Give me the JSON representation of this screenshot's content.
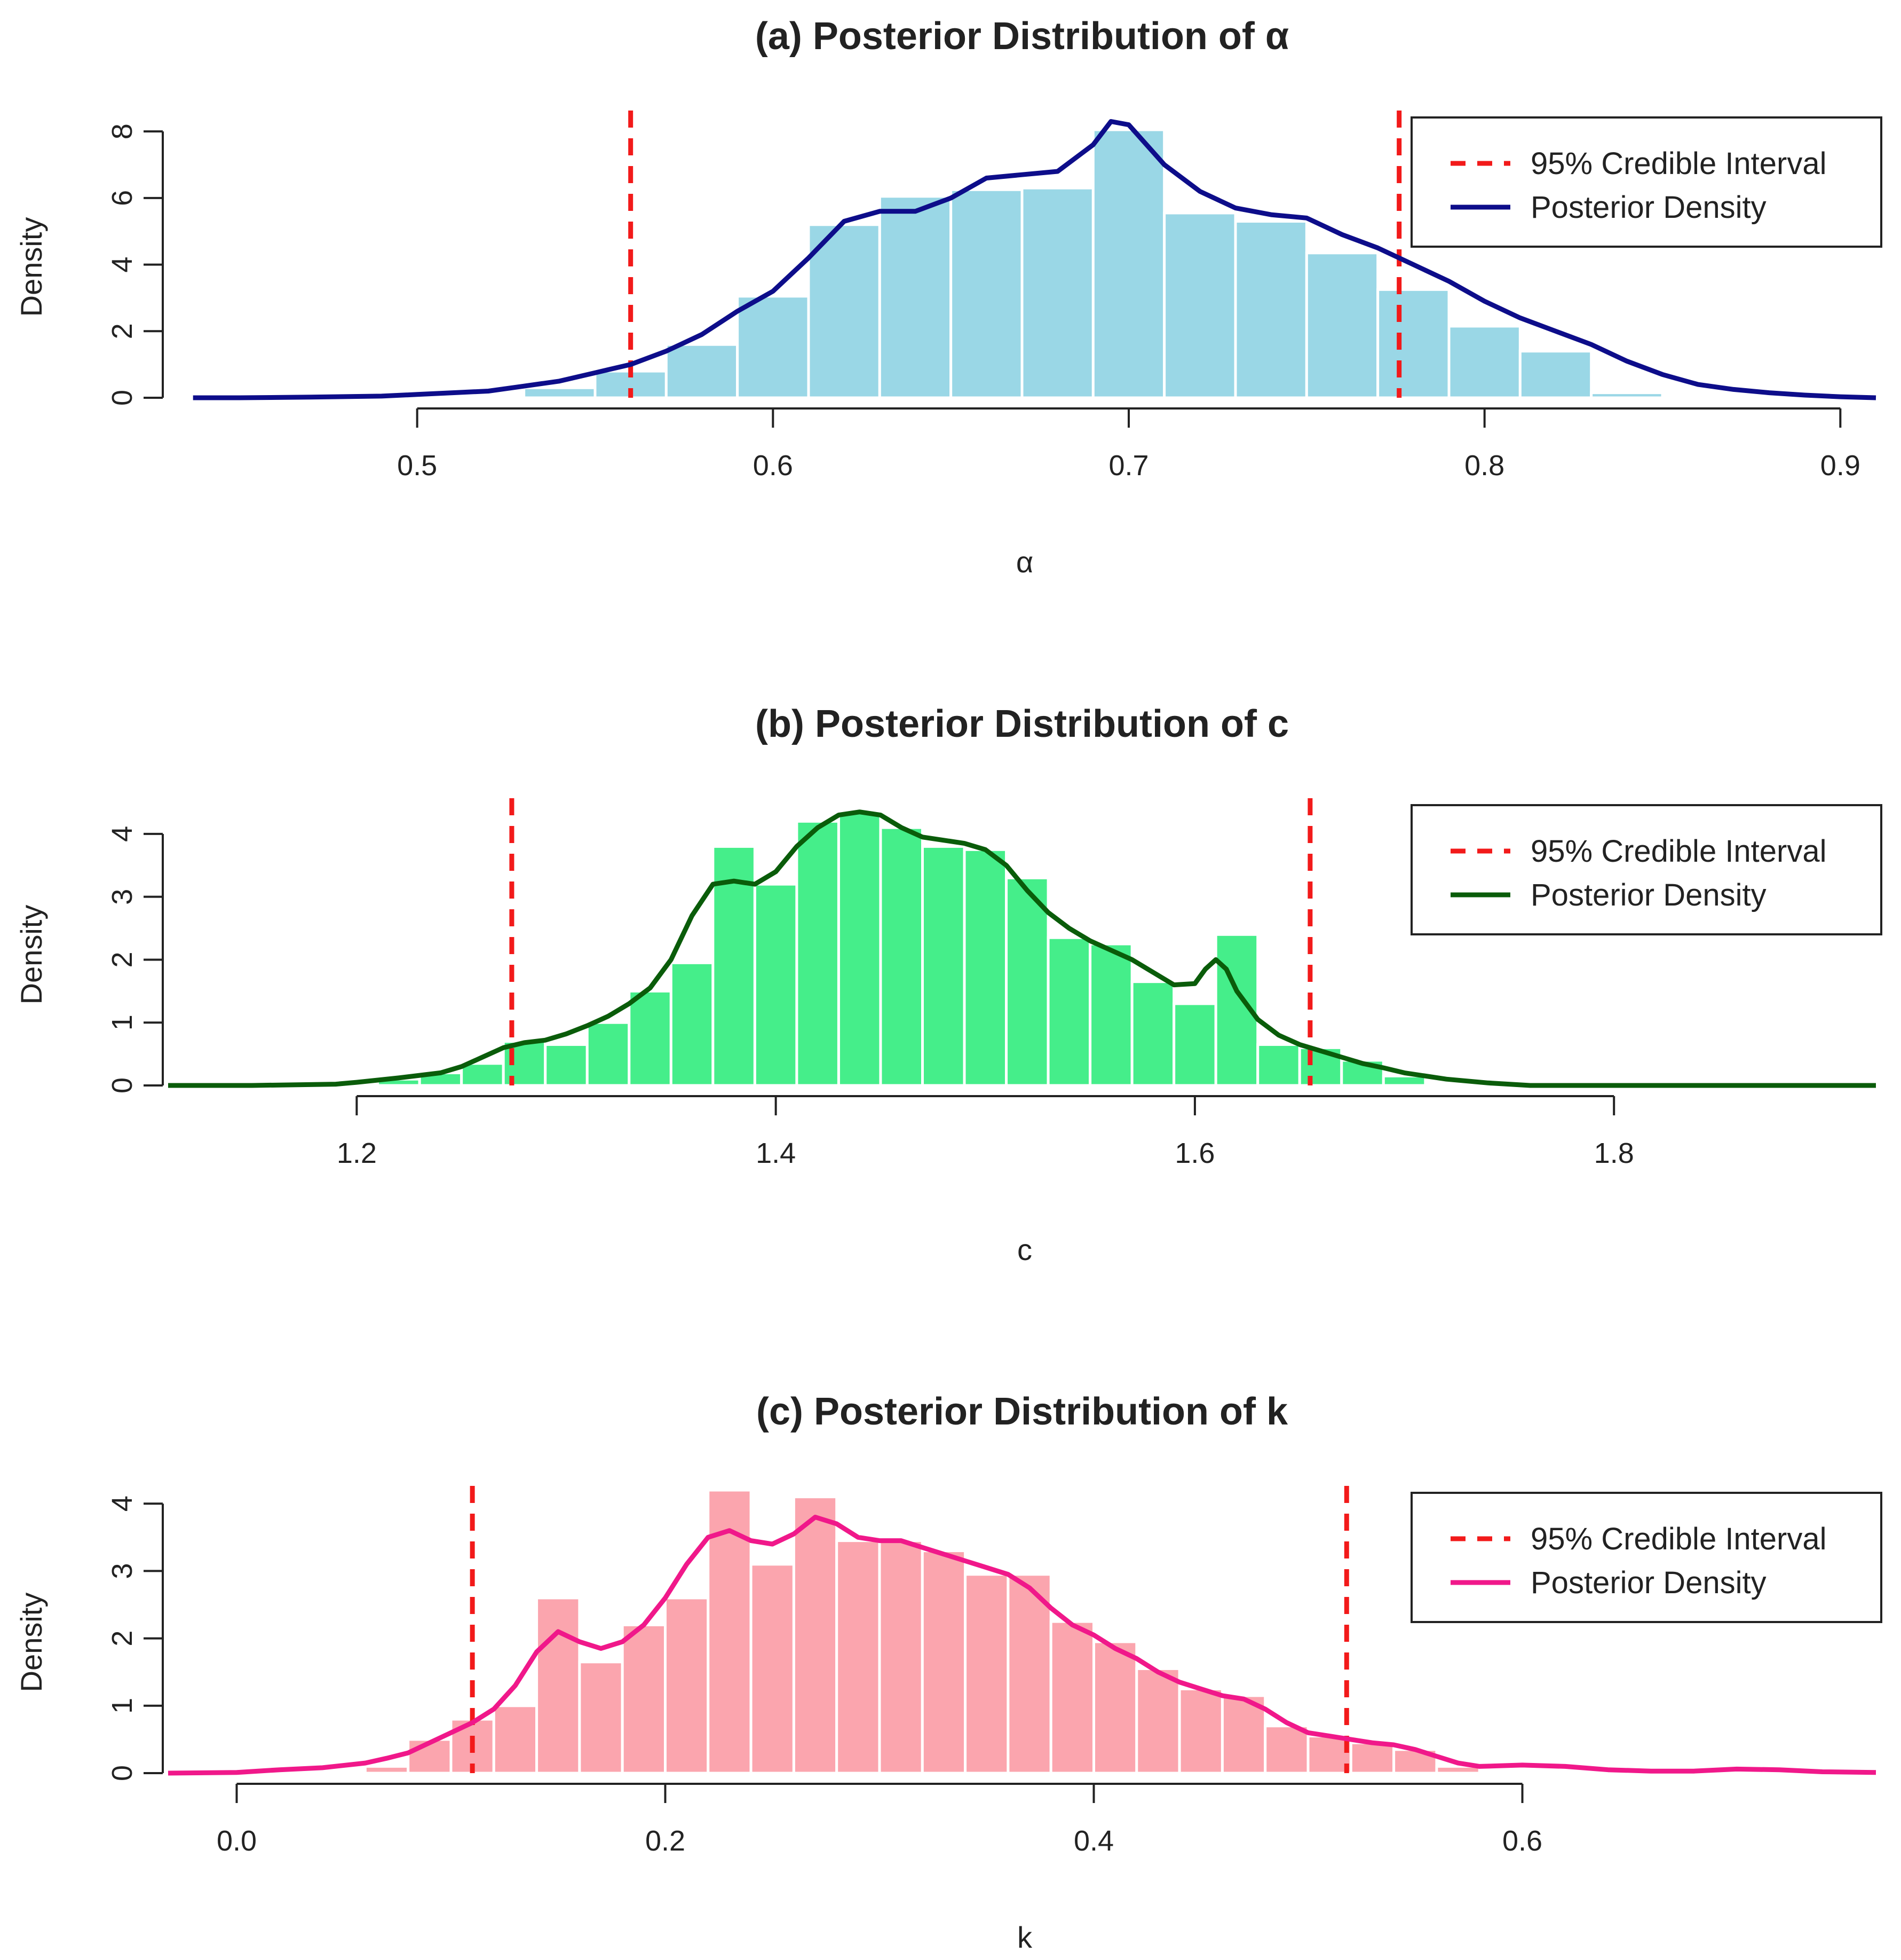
{
  "chart_data": [
    {
      "type": "bar",
      "title": "(a) Posterior Distribution of α",
      "xlabel": "α",
      "ylabel": "Density",
      "xlim": [
        0.43,
        0.91
      ],
      "ylim": [
        0,
        8.5
      ],
      "xticks": [
        0.5,
        0.6,
        0.7,
        0.8,
        0.9
      ],
      "xtick_labels": [
        "0.5",
        "0.6",
        "0.7",
        "0.8",
        "0.9"
      ],
      "yticks": [
        0,
        2,
        4,
        6,
        8
      ],
      "ytick_labels": [
        "0",
        "2",
        "4",
        "6",
        "8"
      ],
      "bin_width": 0.02,
      "bins": [
        {
          "x": 0.52,
          "y": 0.05
        },
        {
          "x": 0.54,
          "y": 0.3
        },
        {
          "x": 0.56,
          "y": 0.8
        },
        {
          "x": 0.58,
          "y": 1.6
        },
        {
          "x": 0.6,
          "y": 3.05
        },
        {
          "x": 0.62,
          "y": 5.2
        },
        {
          "x": 0.64,
          "y": 6.05
        },
        {
          "x": 0.66,
          "y": 6.25
        },
        {
          "x": 0.68,
          "y": 6.3
        },
        {
          "x": 0.7,
          "y": 8.05
        },
        {
          "x": 0.72,
          "y": 5.55
        },
        {
          "x": 0.74,
          "y": 5.3
        },
        {
          "x": 0.76,
          "y": 4.35
        },
        {
          "x": 0.78,
          "y": 3.25
        },
        {
          "x": 0.8,
          "y": 2.15
        },
        {
          "x": 0.82,
          "y": 1.4
        },
        {
          "x": 0.84,
          "y": 0.15
        }
      ],
      "density": [
        {
          "x": 0.437,
          "y": 0.0
        },
        {
          "x": 0.45,
          "y": 0.0
        },
        {
          "x": 0.47,
          "y": 0.02
        },
        {
          "x": 0.49,
          "y": 0.05
        },
        {
          "x": 0.5,
          "y": 0.1
        },
        {
          "x": 0.51,
          "y": 0.15
        },
        {
          "x": 0.52,
          "y": 0.2
        },
        {
          "x": 0.53,
          "y": 0.35
        },
        {
          "x": 0.54,
          "y": 0.5
        },
        {
          "x": 0.55,
          "y": 0.75
        },
        {
          "x": 0.56,
          "y": 1.0
        },
        {
          "x": 0.57,
          "y": 1.4
        },
        {
          "x": 0.58,
          "y": 1.9
        },
        {
          "x": 0.59,
          "y": 2.6
        },
        {
          "x": 0.6,
          "y": 3.2
        },
        {
          "x": 0.61,
          "y": 4.2
        },
        {
          "x": 0.62,
          "y": 5.3
        },
        {
          "x": 0.63,
          "y": 5.6
        },
        {
          "x": 0.64,
          "y": 5.6
        },
        {
          "x": 0.65,
          "y": 6.0
        },
        {
          "x": 0.66,
          "y": 6.6
        },
        {
          "x": 0.67,
          "y": 6.7
        },
        {
          "x": 0.68,
          "y": 6.8
        },
        {
          "x": 0.69,
          "y": 7.6
        },
        {
          "x": 0.695,
          "y": 8.3
        },
        {
          "x": 0.7,
          "y": 8.2
        },
        {
          "x": 0.71,
          "y": 7.0
        },
        {
          "x": 0.72,
          "y": 6.2
        },
        {
          "x": 0.73,
          "y": 5.7
        },
        {
          "x": 0.74,
          "y": 5.5
        },
        {
          "x": 0.75,
          "y": 5.4
        },
        {
          "x": 0.76,
          "y": 4.9
        },
        {
          "x": 0.77,
          "y": 4.5
        },
        {
          "x": 0.78,
          "y": 4.0
        },
        {
          "x": 0.79,
          "y": 3.5
        },
        {
          "x": 0.8,
          "y": 2.9
        },
        {
          "x": 0.81,
          "y": 2.4
        },
        {
          "x": 0.82,
          "y": 2.0
        },
        {
          "x": 0.83,
          "y": 1.6
        },
        {
          "x": 0.84,
          "y": 1.1
        },
        {
          "x": 0.85,
          "y": 0.7
        },
        {
          "x": 0.86,
          "y": 0.4
        },
        {
          "x": 0.87,
          "y": 0.25
        },
        {
          "x": 0.88,
          "y": 0.15
        },
        {
          "x": 0.89,
          "y": 0.08
        },
        {
          "x": 0.9,
          "y": 0.03
        },
        {
          "x": 0.91,
          "y": 0.0
        }
      ],
      "ci": [
        0.56,
        0.776
      ],
      "bar_color": "#9ad7e6",
      "line_color": "#0d0d8a",
      "ci_color": "#f21a1a",
      "legend": [
        "95% Credible Interval",
        "Posterior Density"
      ],
      "legend_position": "top-right"
    },
    {
      "type": "bar",
      "title": "(b) Posterior Distribution of c",
      "xlabel": "c",
      "ylabel": "Density",
      "xlim": [
        1.11,
        1.925
      ],
      "ylim": [
        0,
        4.5
      ],
      "xticks": [
        1.2,
        1.4,
        1.6,
        1.8
      ],
      "xtick_labels": [
        "1.2",
        "1.4",
        "1.6",
        "1.8"
      ],
      "yticks": [
        0,
        1,
        2,
        3,
        4
      ],
      "ytick_labels": [
        "0",
        "1",
        "2",
        "3",
        "4"
      ],
      "bin_width": 0.02,
      "bins": [
        {
          "x": 1.22,
          "y": 0.1
        },
        {
          "x": 1.24,
          "y": 0.2
        },
        {
          "x": 1.26,
          "y": 0.35
        },
        {
          "x": 1.28,
          "y": 0.7
        },
        {
          "x": 1.3,
          "y": 0.65
        },
        {
          "x": 1.32,
          "y": 1.0
        },
        {
          "x": 1.34,
          "y": 1.5
        },
        {
          "x": 1.36,
          "y": 1.95
        },
        {
          "x": 1.38,
          "y": 3.8
        },
        {
          "x": 1.4,
          "y": 3.2
        },
        {
          "x": 1.42,
          "y": 4.2
        },
        {
          "x": 1.44,
          "y": 4.35
        },
        {
          "x": 1.46,
          "y": 4.1
        },
        {
          "x": 1.48,
          "y": 3.8
        },
        {
          "x": 1.5,
          "y": 3.75
        },
        {
          "x": 1.52,
          "y": 3.3
        },
        {
          "x": 1.54,
          "y": 2.35
        },
        {
          "x": 1.56,
          "y": 2.25
        },
        {
          "x": 1.58,
          "y": 1.65
        },
        {
          "x": 1.6,
          "y": 1.3
        },
        {
          "x": 1.62,
          "y": 2.4
        },
        {
          "x": 1.64,
          "y": 0.65
        },
        {
          "x": 1.66,
          "y": 0.6
        },
        {
          "x": 1.68,
          "y": 0.4
        },
        {
          "x": 1.7,
          "y": 0.15
        }
      ],
      "density": [
        {
          "x": 1.11,
          "y": 0.0
        },
        {
          "x": 1.15,
          "y": 0.0
        },
        {
          "x": 1.19,
          "y": 0.02
        },
        {
          "x": 1.2,
          "y": 0.05
        },
        {
          "x": 1.22,
          "y": 0.12
        },
        {
          "x": 1.24,
          "y": 0.2
        },
        {
          "x": 1.25,
          "y": 0.3
        },
        {
          "x": 1.26,
          "y": 0.45
        },
        {
          "x": 1.27,
          "y": 0.6
        },
        {
          "x": 1.28,
          "y": 0.68
        },
        {
          "x": 1.29,
          "y": 0.72
        },
        {
          "x": 1.3,
          "y": 0.82
        },
        {
          "x": 1.31,
          "y": 0.95
        },
        {
          "x": 1.32,
          "y": 1.1
        },
        {
          "x": 1.33,
          "y": 1.3
        },
        {
          "x": 1.34,
          "y": 1.55
        },
        {
          "x": 1.35,
          "y": 2.0
        },
        {
          "x": 1.36,
          "y": 2.7
        },
        {
          "x": 1.37,
          "y": 3.2
        },
        {
          "x": 1.38,
          "y": 3.25
        },
        {
          "x": 1.39,
          "y": 3.2
        },
        {
          "x": 1.4,
          "y": 3.4
        },
        {
          "x": 1.41,
          "y": 3.8
        },
        {
          "x": 1.42,
          "y": 4.1
        },
        {
          "x": 1.43,
          "y": 4.3
        },
        {
          "x": 1.44,
          "y": 4.35
        },
        {
          "x": 1.45,
          "y": 4.3
        },
        {
          "x": 1.46,
          "y": 4.1
        },
        {
          "x": 1.47,
          "y": 3.95
        },
        {
          "x": 1.48,
          "y": 3.9
        },
        {
          "x": 1.49,
          "y": 3.85
        },
        {
          "x": 1.5,
          "y": 3.75
        },
        {
          "x": 1.51,
          "y": 3.5
        },
        {
          "x": 1.52,
          "y": 3.1
        },
        {
          "x": 1.53,
          "y": 2.75
        },
        {
          "x": 1.54,
          "y": 2.5
        },
        {
          "x": 1.55,
          "y": 2.3
        },
        {
          "x": 1.56,
          "y": 2.15
        },
        {
          "x": 1.57,
          "y": 2.0
        },
        {
          "x": 1.58,
          "y": 1.8
        },
        {
          "x": 1.59,
          "y": 1.6
        },
        {
          "x": 1.6,
          "y": 1.62
        },
        {
          "x": 1.605,
          "y": 1.85
        },
        {
          "x": 1.61,
          "y": 2.0
        },
        {
          "x": 1.615,
          "y": 1.85
        },
        {
          "x": 1.62,
          "y": 1.5
        },
        {
          "x": 1.63,
          "y": 1.05
        },
        {
          "x": 1.64,
          "y": 0.8
        },
        {
          "x": 1.65,
          "y": 0.65
        },
        {
          "x": 1.66,
          "y": 0.55
        },
        {
          "x": 1.67,
          "y": 0.45
        },
        {
          "x": 1.68,
          "y": 0.35
        },
        {
          "x": 1.69,
          "y": 0.28
        },
        {
          "x": 1.7,
          "y": 0.2
        },
        {
          "x": 1.72,
          "y": 0.1
        },
        {
          "x": 1.74,
          "y": 0.04
        },
        {
          "x": 1.76,
          "y": 0.0
        },
        {
          "x": 1.925,
          "y": 0.0
        }
      ],
      "ci": [
        1.274,
        1.655
      ],
      "bar_color": "#45ee8a",
      "line_color": "#0a5c0a",
      "ci_color": "#f21a1a",
      "legend": [
        "95% Credible Interval",
        "Posterior Density"
      ],
      "legend_position": "top-right"
    },
    {
      "type": "bar",
      "title": "(c) Posterior Distribution of k",
      "xlabel": "k",
      "ylabel": "Density",
      "xlim": [
        -0.032,
        0.765
      ],
      "ylim": [
        0,
        4.2
      ],
      "xticks": [
        0.0,
        0.2,
        0.4,
        0.6
      ],
      "xtick_labels": [
        "0.0",
        "0.2",
        "0.4",
        "0.6"
      ],
      "yticks": [
        0,
        1,
        2,
        3,
        4
      ],
      "ytick_labels": [
        "0",
        "1",
        "2",
        "3",
        "4"
      ],
      "bin_width": 0.02,
      "bins": [
        {
          "x": 0.07,
          "y": 0.1
        },
        {
          "x": 0.09,
          "y": 0.5
        },
        {
          "x": 0.11,
          "y": 0.8
        },
        {
          "x": 0.13,
          "y": 1.0
        },
        {
          "x": 0.15,
          "y": 2.6
        },
        {
          "x": 0.17,
          "y": 1.65
        },
        {
          "x": 0.19,
          "y": 2.2
        },
        {
          "x": 0.21,
          "y": 2.6
        },
        {
          "x": 0.23,
          "y": 4.2
        },
        {
          "x": 0.25,
          "y": 3.1
        },
        {
          "x": 0.27,
          "y": 4.1
        },
        {
          "x": 0.29,
          "y": 3.45
        },
        {
          "x": 0.31,
          "y": 3.45
        },
        {
          "x": 0.33,
          "y": 3.3
        },
        {
          "x": 0.35,
          "y": 2.95
        },
        {
          "x": 0.37,
          "y": 2.95
        },
        {
          "x": 0.39,
          "y": 2.25
        },
        {
          "x": 0.41,
          "y": 1.95
        },
        {
          "x": 0.43,
          "y": 1.55
        },
        {
          "x": 0.45,
          "y": 1.25
        },
        {
          "x": 0.47,
          "y": 1.15
        },
        {
          "x": 0.49,
          "y": 0.7
        },
        {
          "x": 0.51,
          "y": 0.55
        },
        {
          "x": 0.53,
          "y": 0.45
        },
        {
          "x": 0.55,
          "y": 0.35
        },
        {
          "x": 0.57,
          "y": 0.1
        }
      ],
      "density": [
        {
          "x": -0.032,
          "y": 0.0
        },
        {
          "x": 0.0,
          "y": 0.01
        },
        {
          "x": 0.02,
          "y": 0.05
        },
        {
          "x": 0.04,
          "y": 0.08
        },
        {
          "x": 0.06,
          "y": 0.15
        },
        {
          "x": 0.07,
          "y": 0.22
        },
        {
          "x": 0.08,
          "y": 0.3
        },
        {
          "x": 0.09,
          "y": 0.45
        },
        {
          "x": 0.1,
          "y": 0.6
        },
        {
          "x": 0.11,
          "y": 0.75
        },
        {
          "x": 0.12,
          "y": 0.95
        },
        {
          "x": 0.13,
          "y": 1.3
        },
        {
          "x": 0.14,
          "y": 1.8
        },
        {
          "x": 0.15,
          "y": 2.1
        },
        {
          "x": 0.16,
          "y": 1.95
        },
        {
          "x": 0.17,
          "y": 1.85
        },
        {
          "x": 0.18,
          "y": 1.95
        },
        {
          "x": 0.19,
          "y": 2.2
        },
        {
          "x": 0.2,
          "y": 2.6
        },
        {
          "x": 0.21,
          "y": 3.1
        },
        {
          "x": 0.22,
          "y": 3.5
        },
        {
          "x": 0.23,
          "y": 3.6
        },
        {
          "x": 0.24,
          "y": 3.45
        },
        {
          "x": 0.25,
          "y": 3.4
        },
        {
          "x": 0.26,
          "y": 3.55
        },
        {
          "x": 0.27,
          "y": 3.8
        },
        {
          "x": 0.28,
          "y": 3.7
        },
        {
          "x": 0.29,
          "y": 3.5
        },
        {
          "x": 0.3,
          "y": 3.45
        },
        {
          "x": 0.31,
          "y": 3.45
        },
        {
          "x": 0.32,
          "y": 3.35
        },
        {
          "x": 0.33,
          "y": 3.25
        },
        {
          "x": 0.34,
          "y": 3.15
        },
        {
          "x": 0.35,
          "y": 3.05
        },
        {
          "x": 0.36,
          "y": 2.95
        },
        {
          "x": 0.37,
          "y": 2.75
        },
        {
          "x": 0.38,
          "y": 2.45
        },
        {
          "x": 0.39,
          "y": 2.2
        },
        {
          "x": 0.4,
          "y": 2.05
        },
        {
          "x": 0.41,
          "y": 1.85
        },
        {
          "x": 0.42,
          "y": 1.7
        },
        {
          "x": 0.43,
          "y": 1.5
        },
        {
          "x": 0.44,
          "y": 1.35
        },
        {
          "x": 0.45,
          "y": 1.25
        },
        {
          "x": 0.46,
          "y": 1.15
        },
        {
          "x": 0.47,
          "y": 1.1
        },
        {
          "x": 0.48,
          "y": 0.95
        },
        {
          "x": 0.49,
          "y": 0.75
        },
        {
          "x": 0.5,
          "y": 0.6
        },
        {
          "x": 0.51,
          "y": 0.55
        },
        {
          "x": 0.52,
          "y": 0.5
        },
        {
          "x": 0.53,
          "y": 0.45
        },
        {
          "x": 0.54,
          "y": 0.42
        },
        {
          "x": 0.55,
          "y": 0.35
        },
        {
          "x": 0.56,
          "y": 0.25
        },
        {
          "x": 0.57,
          "y": 0.15
        },
        {
          "x": 0.58,
          "y": 0.1
        },
        {
          "x": 0.6,
          "y": 0.12
        },
        {
          "x": 0.62,
          "y": 0.1
        },
        {
          "x": 0.64,
          "y": 0.05
        },
        {
          "x": 0.66,
          "y": 0.03
        },
        {
          "x": 0.68,
          "y": 0.03
        },
        {
          "x": 0.7,
          "y": 0.06
        },
        {
          "x": 0.72,
          "y": 0.05
        },
        {
          "x": 0.74,
          "y": 0.02
        },
        {
          "x": 0.765,
          "y": 0.01
        }
      ],
      "ci": [
        0.11,
        0.518
      ],
      "bar_color": "#fba5ae",
      "line_color": "#f0188a",
      "ci_color": "#f21a1a",
      "legend": [
        "95% Credible Interval",
        "Posterior Density"
      ],
      "legend_position": "top-right"
    }
  ]
}
